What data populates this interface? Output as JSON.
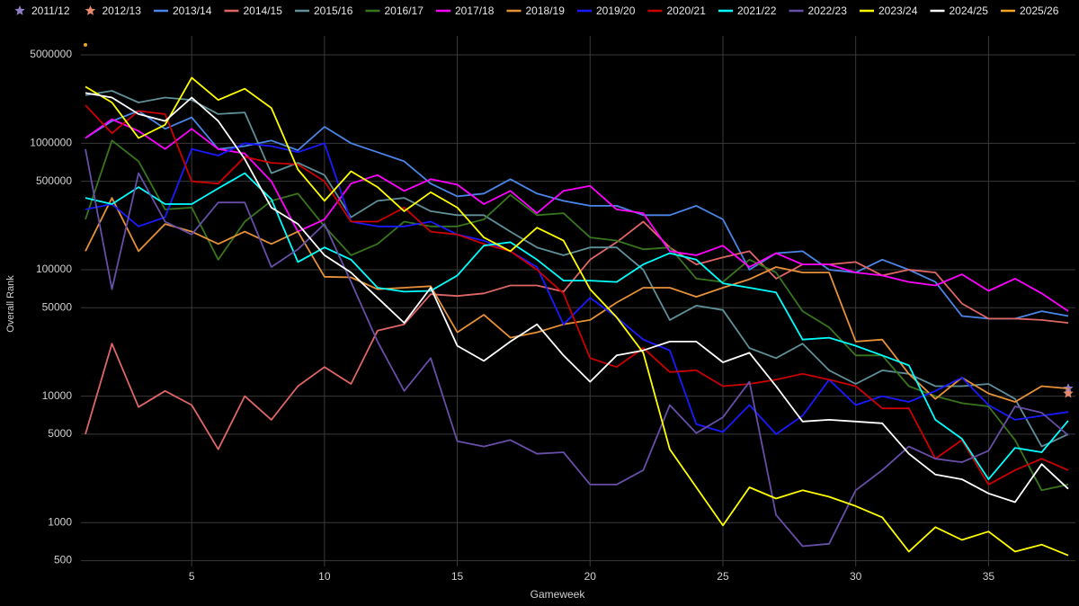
{
  "chart_data": {
    "type": "line",
    "log_scale": true,
    "grid": true,
    "legend_position": "top",
    "x_label": "Gameweek",
    "y_label": "Overall Rank",
    "x": [
      1,
      2,
      3,
      4,
      5,
      6,
      7,
      8,
      9,
      10,
      11,
      12,
      13,
      14,
      15,
      16,
      17,
      18,
      19,
      20,
      21,
      22,
      23,
      24,
      25,
      26,
      27,
      28,
      29,
      30,
      31,
      32,
      33,
      34,
      35,
      36,
      37,
      38
    ],
    "xlim": [
      1,
      38
    ],
    "xticks": [
      5,
      10,
      15,
      20,
      25,
      30,
      35
    ],
    "ylim": [
      450,
      6500000
    ],
    "yticks": [
      500,
      1000,
      5000,
      10000,
      50000,
      100000,
      500000,
      1000000,
      5000000
    ],
    "series": [
      {
        "name": "2011/12",
        "color": "#8e7cc3",
        "marker": "star",
        "values": [
          null,
          null,
          null,
          null,
          null,
          null,
          null,
          null,
          null,
          null,
          null,
          null,
          null,
          null,
          null,
          null,
          null,
          null,
          null,
          null,
          null,
          null,
          null,
          null,
          null,
          null,
          null,
          null,
          null,
          null,
          null,
          null,
          null,
          null,
          null,
          null,
          null,
          11500
        ]
      },
      {
        "name": "2012/13",
        "color": "#e8896b",
        "marker": "star",
        "values": [
          null,
          null,
          null,
          null,
          null,
          null,
          null,
          null,
          null,
          null,
          null,
          null,
          null,
          null,
          null,
          null,
          null,
          null,
          null,
          null,
          null,
          null,
          null,
          null,
          null,
          null,
          null,
          null,
          null,
          null,
          null,
          null,
          null,
          null,
          null,
          null,
          null,
          10500
        ]
      },
      {
        "name": "2013/14",
        "color": "#4a86e8",
        "values": [
          1100000,
          1500000,
          1800000,
          1300000,
          1600000,
          900000,
          950000,
          1050000,
          880000,
          1350000,
          1000000,
          850000,
          720000,
          480000,
          380000,
          400000,
          520000,
          400000,
          350000,
          320000,
          320000,
          270000,
          270000,
          320000,
          250000,
          100000,
          135000,
          140000,
          100000,
          95000,
          120000,
          100000,
          80000,
          43000,
          41000,
          41000,
          47000,
          43000
        ]
      },
      {
        "name": "2014/15",
        "color": "#e06666",
        "values": [
          5000,
          26000,
          8200,
          11000,
          8500,
          3800,
          10000,
          6500,
          12000,
          17000,
          12500,
          33000,
          37000,
          64000,
          62000,
          65000,
          75000,
          75000,
          67000,
          120000,
          165000,
          240000,
          150000,
          110000,
          125000,
          140000,
          85000,
          110000,
          110000,
          115000,
          90000,
          100000,
          95000,
          54000,
          41000,
          41000,
          40000,
          38000
        ]
      },
      {
        "name": "2015/16",
        "color": "#5f8f98",
        "values": [
          2400000,
          2600000,
          2100000,
          2300000,
          2200000,
          1700000,
          1750000,
          580000,
          700000,
          560000,
          260000,
          350000,
          370000,
          290000,
          270000,
          270000,
          200000,
          150000,
          130000,
          150000,
          150000,
          100000,
          40000,
          52000,
          48000,
          24000,
          20000,
          26000,
          16000,
          12500,
          16000,
          15000,
          12000,
          12000,
          12500,
          9500,
          4000,
          5000
        ]
      },
      {
        "name": "2016/17",
        "color": "#38761d",
        "values": [
          250000,
          1050000,
          720000,
          300000,
          310000,
          120000,
          240000,
          350000,
          400000,
          220000,
          130000,
          160000,
          240000,
          220000,
          220000,
          250000,
          390000,
          270000,
          280000,
          180000,
          170000,
          145000,
          150000,
          85000,
          80000,
          120000,
          95000,
          47000,
          35000,
          21000,
          21000,
          12000,
          10000,
          8800,
          8300,
          4500,
          1800,
          2000
        ]
      },
      {
        "name": "2017/18",
        "color": "#ff00ff",
        "values": [
          1100000,
          1550000,
          1250000,
          900000,
          1300000,
          900000,
          830000,
          500000,
          200000,
          250000,
          480000,
          560000,
          420000,
          520000,
          470000,
          330000,
          420000,
          280000,
          420000,
          460000,
          300000,
          280000,
          140000,
          130000,
          155000,
          105000,
          135000,
          110000,
          110000,
          95000,
          90000,
          80000,
          75000,
          92000,
          68000,
          85000,
          65000,
          47000
        ]
      },
      {
        "name": "2018/19",
        "color": "#e69138",
        "values": [
          140000,
          370000,
          140000,
          230000,
          200000,
          160000,
          200000,
          160000,
          200000,
          88000,
          87000,
          70000,
          72000,
          74000,
          32000,
          44000,
          29000,
          32000,
          37000,
          40000,
          55000,
          72000,
          72000,
          61000,
          72000,
          84000,
          105000,
          95000,
          95000,
          27000,
          28000,
          15000,
          9500,
          14000,
          10500,
          9000,
          12000,
          11500
        ]
      },
      {
        "name": "2019/20",
        "color": "#1a1aff",
        "values": [
          300000,
          330000,
          220000,
          260000,
          900000,
          800000,
          1000000,
          950000,
          850000,
          1000000,
          240000,
          220000,
          220000,
          240000,
          190000,
          170000,
          140000,
          105000,
          37000,
          60000,
          42000,
          28000,
          23000,
          6000,
          5200,
          8500,
          5000,
          7000,
          13500,
          8500,
          10000,
          9000,
          11000,
          14000,
          8500,
          6500,
          7000,
          7500
        ]
      },
      {
        "name": "2020/21",
        "color": "#cc0000",
        "values": [
          2000000,
          1200000,
          1800000,
          1700000,
          500000,
          480000,
          780000,
          700000,
          680000,
          500000,
          240000,
          240000,
          310000,
          200000,
          190000,
          160000,
          140000,
          100000,
          65000,
          20000,
          17000,
          24000,
          15500,
          16000,
          12000,
          12500,
          13500,
          15000,
          13500,
          12000,
          8000,
          8000,
          3200,
          4500,
          2000,
          2600,
          3200,
          2600
        ]
      },
      {
        "name": "2021/22",
        "color": "#00ffff",
        "values": [
          370000,
          330000,
          450000,
          330000,
          330000,
          440000,
          580000,
          360000,
          115000,
          150000,
          120000,
          72000,
          67000,
          68000,
          90000,
          155000,
          165000,
          120000,
          82000,
          82000,
          80000,
          110000,
          135000,
          120000,
          78000,
          72000,
          66000,
          28000,
          29000,
          25000,
          21000,
          17500,
          6500,
          4600,
          2200,
          3900,
          3600,
          6400
        ]
      },
      {
        "name": "2022/23",
        "color": "#674ea7",
        "values": [
          900000,
          70000,
          580000,
          240000,
          190000,
          340000,
          340000,
          105000,
          145000,
          230000,
          80000,
          27000,
          11000,
          20000,
          4400,
          4000,
          4500,
          3500,
          3600,
          2000,
          2000,
          2600,
          8500,
          5100,
          6800,
          13000,
          1150,
          650,
          680,
          1800,
          2600,
          4000,
          3200,
          3000,
          3700,
          8300,
          7400,
          4900
        ]
      },
      {
        "name": "2023/24",
        "color": "#ffff00",
        "values": [
          2800000,
          2100000,
          1100000,
          1400000,
          3300000,
          2200000,
          2700000,
          1900000,
          620000,
          350000,
          600000,
          450000,
          290000,
          410000,
          310000,
          180000,
          140000,
          215000,
          170000,
          70000,
          42000,
          22000,
          3800,
          1900,
          950,
          1900,
          1550,
          1800,
          1600,
          1350,
          1100,
          590,
          920,
          730,
          850,
          590,
          670,
          550
        ]
      },
      {
        "name": "2024/25",
        "color": "#ffffff",
        "values": [
          2500000,
          2300000,
          1700000,
          1500000,
          2300000,
          1500000,
          750000,
          310000,
          230000,
          130000,
          95000,
          60000,
          38000,
          72000,
          25000,
          19000,
          27000,
          37000,
          21000,
          13000,
          21000,
          23000,
          27000,
          27000,
          18500,
          22000,
          12000,
          6300,
          6500,
          6300,
          6100,
          3500,
          2400,
          2200,
          1700,
          1450,
          2900,
          1850
        ]
      },
      {
        "name": "2025/26",
        "color": "#f1a51c",
        "values": [
          6000000,
          null,
          null,
          null,
          null,
          null,
          null,
          null,
          null,
          null,
          null,
          null,
          null,
          null,
          null,
          null,
          null,
          null,
          null,
          null,
          null,
          null,
          null,
          null,
          null,
          null,
          null,
          null,
          null,
          null,
          null,
          null,
          null,
          null,
          null,
          null,
          null,
          null
        ]
      }
    ]
  }
}
